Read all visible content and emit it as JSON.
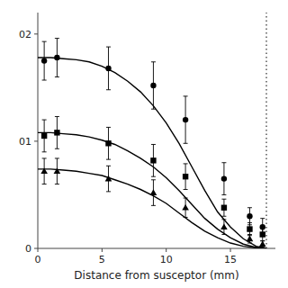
{
  "chart_data": {
    "type": "line",
    "xlabel": "Distance from susceptor (mm)",
    "xlim": [
      0,
      18.5
    ],
    "ylim": [
      0,
      0.022
    ],
    "xticks": [
      0,
      5,
      10,
      15
    ],
    "yticks": [
      0,
      {
        "value": 0.01,
        "label": "01"
      },
      {
        "value": 0.02,
        "label": "02"
      }
    ],
    "grid": false,
    "series": [
      {
        "type": "line",
        "color": "black",
        "x": [
          0,
          0.5,
          1,
          2,
          3,
          4,
          5,
          6,
          7,
          8,
          9,
          10,
          11,
          12,
          13,
          14,
          15,
          16,
          17,
          17.8
        ],
        "values": [
          0.0178,
          0.0178,
          0.0178,
          0.0177,
          0.0176,
          0.0174,
          0.017,
          0.0164,
          0.0156,
          0.0146,
          0.0133,
          0.0117,
          0.0098,
          0.0076,
          0.0054,
          0.0034,
          0.002,
          0.0009,
          0.0002,
          0.0
        ]
      },
      {
        "type": "line",
        "color": "black",
        "x": [
          0,
          0.5,
          1,
          2,
          3,
          4,
          5,
          6,
          7,
          8,
          9,
          10,
          11,
          12,
          13,
          14,
          15,
          16,
          17,
          17.8
        ],
        "values": [
          0.0108,
          0.0108,
          0.0108,
          0.0107,
          0.0106,
          0.0104,
          0.0101,
          0.0097,
          0.0091,
          0.0084,
          0.0076,
          0.0066,
          0.0054,
          0.0041,
          0.0028,
          0.0018,
          0.001,
          0.0004,
          0.0001,
          0.0
        ]
      },
      {
        "type": "line",
        "color": "black",
        "x": [
          0,
          0.5,
          1,
          2,
          3,
          4,
          5,
          6,
          7,
          8,
          9,
          10,
          11,
          12,
          13,
          14,
          15,
          16,
          17,
          17.8
        ],
        "values": [
          0.0074,
          0.0074,
          0.0074,
          0.0073,
          0.0072,
          0.007,
          0.0068,
          0.0064,
          0.006,
          0.0055,
          0.0049,
          0.0042,
          0.0033,
          0.0024,
          0.0016,
          0.001,
          0.0005,
          0.0002,
          4e-05,
          0.0
        ]
      },
      {
        "type": "scatter",
        "marker": "circle",
        "color": "black",
        "x": [
          0.5,
          1.5,
          5.5,
          9.0,
          11.5,
          14.5,
          16.5,
          17.5
        ],
        "values": [
          0.0175,
          0.0178,
          0.0168,
          0.0152,
          0.012,
          0.0065,
          0.003,
          0.002
        ],
        "errors": [
          0.0018,
          0.0018,
          0.002,
          0.0022,
          0.0022,
          0.0015,
          0.0008,
          0.0008
        ]
      },
      {
        "type": "scatter",
        "marker": "square",
        "color": "black",
        "x": [
          0.5,
          1.5,
          5.5,
          9.0,
          11.5,
          14.5,
          16.5,
          17.5
        ],
        "values": [
          0.0105,
          0.0108,
          0.0098,
          0.0082,
          0.0067,
          0.0038,
          0.0018,
          0.0013
        ],
        "errors": [
          0.0015,
          0.0015,
          0.0015,
          0.0015,
          0.0012,
          0.0008,
          0.0006,
          0.0006
        ]
      },
      {
        "type": "scatter",
        "marker": "triangle",
        "color": "black",
        "x": [
          0.5,
          1.5,
          5.5,
          9.0,
          11.5,
          14.5,
          16.5,
          17.5
        ],
        "values": [
          0.0072,
          0.0072,
          0.0065,
          0.0052,
          0.0038,
          0.002,
          0.0009,
          0.0004
        ],
        "errors": [
          0.0012,
          0.0012,
          0.0012,
          0.0012,
          0.0009,
          0.0007,
          0.0004,
          0.0003
        ]
      },
      {
        "type": "vline",
        "color": "black",
        "line_style": "dotted",
        "x": [
          17.8
        ]
      }
    ]
  }
}
